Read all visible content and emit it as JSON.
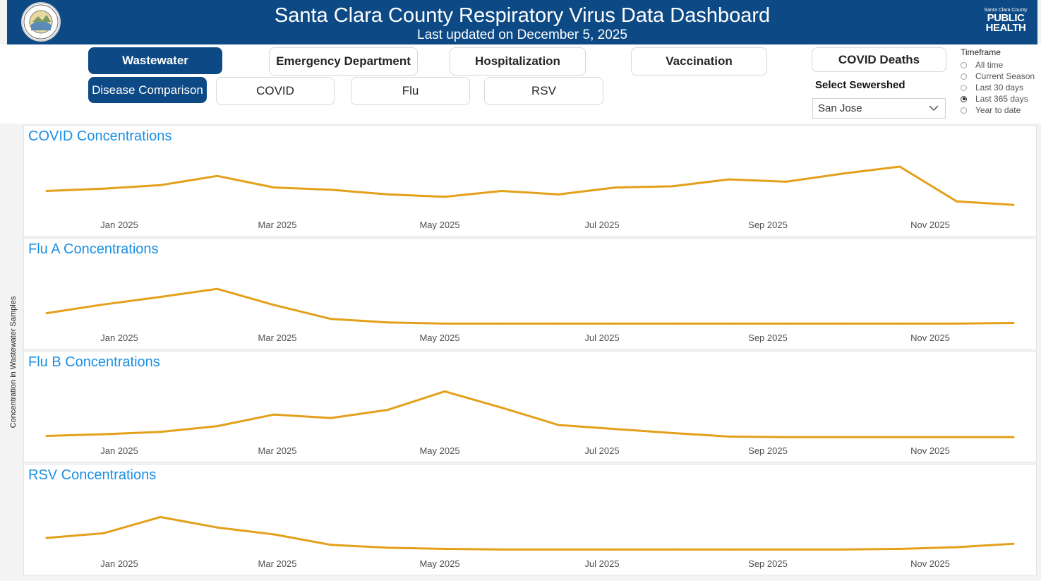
{
  "header": {
    "title": "Santa Clara County Respiratory Virus Data Dashboard",
    "subtitle": "Last updated on December 5, 2025",
    "seal_text": "THE COUNTY OF SANTA CLARA",
    "logo_small": "Santa Clara County",
    "logo_line1": "PUBLIC",
    "logo_line2": "HEALTH"
  },
  "nav": {
    "wastewater": "Wastewater",
    "emergency": "Emergency Department",
    "hospitalization": "Hospitalization",
    "vaccination": "Vaccination",
    "covid_deaths": "COVID Deaths",
    "disease_comparison": "Disease Comparison",
    "covid": "COVID",
    "flu": "Flu",
    "rsv": "RSV"
  },
  "sewershed": {
    "label": "Select Sewershed",
    "value": "San Jose"
  },
  "timeframe": {
    "title": "Timeframe",
    "options": [
      "All time",
      "Current Season",
      "Last 30 days",
      "Last 365 days",
      "Year to date"
    ],
    "selected": "Last 365 days"
  },
  "y_axis_label": "Concentration in Wastewater Samples",
  "colors": {
    "header": "#0d4a85",
    "line": "#e3a01a",
    "title": "#1a8fe3"
  },
  "chart_data": [
    {
      "type": "line",
      "title": "COVID Concentrations",
      "x_ticks": [
        "Jan 2025",
        "Mar 2025",
        "May 2025",
        "Jul 2025",
        "Sep 2025",
        "Nov 2025"
      ],
      "x": [
        0,
        3,
        6,
        9,
        12,
        15,
        18,
        21,
        24,
        27,
        30,
        33,
        36,
        39,
        42,
        45,
        48,
        51
      ],
      "values": [
        36,
        40,
        46,
        62,
        42,
        38,
        30,
        26,
        36,
        30,
        42,
        44,
        56,
        52,
        66,
        78,
        18,
        12
      ],
      "ylim": [
        0,
        100
      ]
    },
    {
      "type": "line",
      "title": "Flu A Concentrations",
      "x_ticks": [
        "Jan 2025",
        "Mar 2025",
        "May 2025",
        "Jul 2025",
        "Sep 2025",
        "Nov 2025"
      ],
      "x": [
        0,
        3,
        6,
        9,
        12,
        15,
        18,
        21,
        24,
        27,
        30,
        33,
        36,
        39,
        42,
        45,
        48,
        51
      ],
      "values": [
        20,
        35,
        48,
        62,
        34,
        10,
        4,
        2,
        2,
        2,
        2,
        2,
        2,
        2,
        2,
        2,
        2,
        3
      ],
      "ylim": [
        0,
        100
      ]
    },
    {
      "type": "line",
      "title": "Flu B Concentrations",
      "x_ticks": [
        "Jan 2025",
        "Mar 2025",
        "May 2025",
        "Jul 2025",
        "Sep 2025",
        "Nov 2025"
      ],
      "x": [
        0,
        3,
        6,
        9,
        12,
        15,
        18,
        21,
        24,
        27,
        30,
        33,
        36,
        39,
        42,
        45,
        48,
        51
      ],
      "values": [
        3,
        6,
        10,
        20,
        40,
        34,
        48,
        80,
        52,
        22,
        15,
        8,
        2,
        1,
        1,
        1,
        1,
        1
      ],
      "ylim": [
        0,
        100
      ]
    },
    {
      "type": "line",
      "title": "RSV Concentrations",
      "x_ticks": [
        "Jan 2025",
        "Mar 2025",
        "May 2025",
        "Jul 2025",
        "Sep 2025",
        "Nov 2025"
      ],
      "x": [
        0,
        3,
        6,
        9,
        12,
        15,
        18,
        21,
        24,
        27,
        30,
        33,
        36,
        39,
        42,
        45,
        48,
        51
      ],
      "values": [
        22,
        30,
        58,
        40,
        28,
        10,
        5,
        3,
        2,
        2,
        2,
        2,
        2,
        2,
        2,
        3,
        6,
        12
      ],
      "ylim": [
        0,
        100
      ]
    }
  ]
}
